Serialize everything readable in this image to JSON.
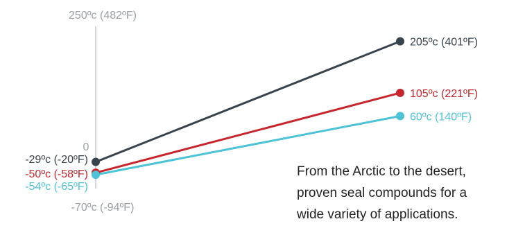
{
  "chart_data": {
    "type": "line",
    "title": "",
    "xlabel": "",
    "ylabel": "",
    "ylim": [
      -70,
      250
    ],
    "axis_labels": {
      "top": "250ºc (482ºF)",
      "zero": "0",
      "bottom": "-70ºc (-94ºF)"
    },
    "series": [
      {
        "color": "#37434d",
        "values": [
          -29,
          205
        ],
        "labels": [
          "-29ºc (-20ºF)",
          "205ºc (401ºF)"
        ]
      },
      {
        "color": "#c8252d",
        "values": [
          -50,
          105
        ],
        "labels": [
          "-50ºc (-58ºF)",
          "105ºc (221ºF)"
        ]
      },
      {
        "color": "#4cc3d6",
        "values": [
          -54,
          60
        ],
        "labels": [
          "-54ºc (-65ºF)",
          "60ºc (140ºF)"
        ]
      }
    ]
  },
  "caption": {
    "lines": [
      "From the Arctic to the desert,",
      "proven seal compounds for a",
      "wide variety of applications."
    ]
  }
}
